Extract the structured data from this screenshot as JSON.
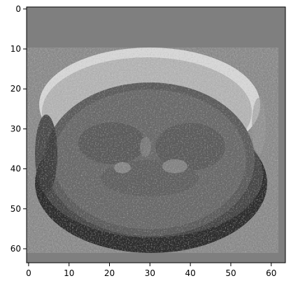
{
  "image": {
    "description_kind": "grayscale 64x64 image rendered with axes",
    "grid": false,
    "colors": {
      "background": "#808080",
      "axis": "#000000",
      "page": "#ffffff"
    }
  },
  "axes": {
    "x": {
      "range": [
        -0.5,
        63.5
      ],
      "ticks": [
        0,
        10,
        20,
        30,
        40,
        50,
        60
      ],
      "tick_labels": [
        "0",
        "10",
        "20",
        "30",
        "40",
        "50",
        "60"
      ]
    },
    "y": {
      "range": [
        63.5,
        -0.5
      ],
      "ticks": [
        0,
        10,
        20,
        30,
        40,
        50,
        60
      ],
      "tick_labels": [
        "0",
        "10",
        "20",
        "30",
        "40",
        "50",
        "60"
      ]
    }
  }
}
